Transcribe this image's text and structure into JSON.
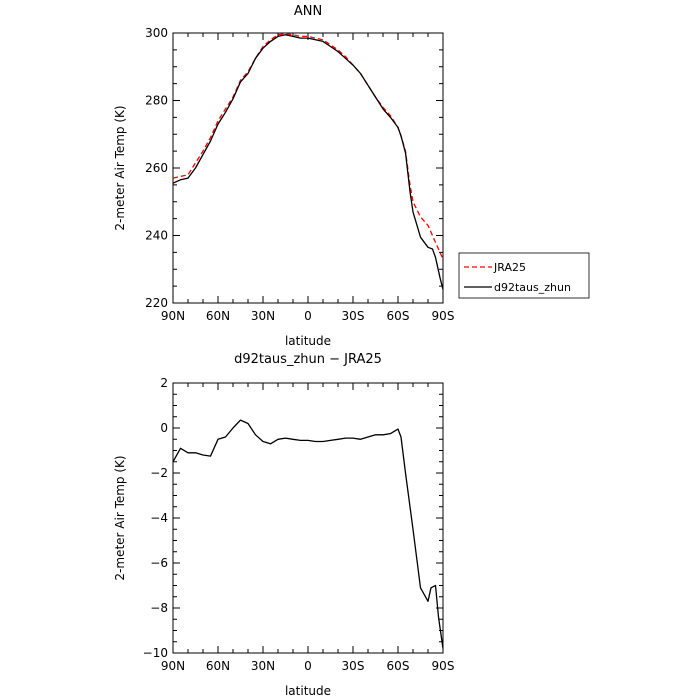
{
  "chart_data": [
    {
      "type": "line",
      "title": "ANN",
      "xlabel": "latitude",
      "ylabel": "2-meter Air Temp (K)",
      "xlim": [
        90,
        -90
      ],
      "ylim": [
        220,
        300
      ],
      "x_ticks": [
        90,
        60,
        30,
        0,
        -30,
        -60,
        -90
      ],
      "x_tick_labels": [
        "90N",
        "60N",
        "30N",
        "0",
        "30S",
        "60S",
        "90S"
      ],
      "y_ticks": [
        220,
        240,
        260,
        280,
        300
      ],
      "y_tick_labels": [
        "220",
        "240",
        "260",
        "280",
        "300"
      ],
      "legend": "right",
      "series": [
        {
          "name": "JRA25",
          "color": "#ff0000",
          "dash": "dashed",
          "x": [
            90,
            85,
            80,
            75,
            70,
            65,
            60,
            55,
            50,
            45,
            40,
            35,
            30,
            25,
            20,
            15,
            10,
            5,
            0,
            -5,
            -10,
            -15,
            -20,
            -25,
            -30,
            -35,
            -40,
            -45,
            -50,
            -55,
            -60,
            -62,
            -65,
            -68,
            -70,
            -75,
            -80,
            -85,
            -90
          ],
          "values": [
            257,
            257.5,
            258,
            261.5,
            265,
            269,
            274,
            277.5,
            281,
            286,
            288.5,
            292.5,
            296,
            298,
            299.5,
            299.8,
            299.5,
            299,
            299,
            298.5,
            298,
            296.5,
            295,
            293,
            290.5,
            288,
            284.5,
            281,
            278,
            275.5,
            272,
            269.5,
            265,
            255,
            250,
            245.5,
            243,
            238,
            233
          ]
        },
        {
          "name": "d92taus_zhun",
          "color": "#000000",
          "dash": "solid",
          "x": [
            90,
            85,
            80,
            75,
            70,
            65,
            60,
            55,
            50,
            45,
            40,
            35,
            30,
            25,
            20,
            15,
            10,
            5,
            0,
            -5,
            -10,
            -15,
            -20,
            -25,
            -30,
            -35,
            -40,
            -45,
            -50,
            -55,
            -60,
            -62,
            -65,
            -68,
            -70,
            -75,
            -80,
            -83,
            -85,
            -88,
            -90
          ],
          "values": [
            255.5,
            256.5,
            257,
            260,
            264,
            268,
            273,
            276.5,
            280.5,
            285.5,
            288,
            292.5,
            295.5,
            297.5,
            299,
            299.5,
            299,
            298.5,
            298.5,
            298,
            297.5,
            296,
            294.5,
            292.5,
            290.5,
            288,
            284.5,
            281,
            277.5,
            275,
            272,
            269.5,
            264.5,
            253,
            247,
            239.5,
            236.5,
            236,
            233.5,
            227.5,
            224
          ]
        }
      ]
    },
    {
      "type": "line",
      "title": "d92taus_zhun − JRA25",
      "xlabel": "latitude",
      "ylabel": "2-meter Air Temp (K)",
      "xlim": [
        90,
        -90
      ],
      "ylim": [
        -10,
        2
      ],
      "x_ticks": [
        90,
        60,
        30,
        0,
        -30,
        -60,
        -90
      ],
      "x_tick_labels": [
        "90N",
        "60N",
        "30N",
        "0",
        "30S",
        "60S",
        "90S"
      ],
      "y_ticks": [
        -10,
        -8,
        -6,
        -4,
        -2,
        0,
        2
      ],
      "y_tick_labels": [
        "−10",
        "−8",
        "−6",
        "−4",
        "−2",
        "0",
        "2"
      ],
      "series": [
        {
          "color": "#000000",
          "dash": "solid",
          "x": [
            90,
            85,
            80,
            75,
            70,
            65,
            60,
            55,
            50,
            45,
            40,
            35,
            30,
            25,
            20,
            15,
            10,
            5,
            0,
            -5,
            -10,
            -15,
            -20,
            -25,
            -30,
            -35,
            -40,
            -45,
            -50,
            -55,
            -60,
            -62,
            -65,
            -70,
            -75,
            -80,
            -82,
            -85,
            -87,
            -90
          ],
          "values": [
            -1.5,
            -0.9,
            -1.1,
            -1.1,
            -1.2,
            -1.25,
            -0.5,
            -0.4,
            0,
            0.35,
            0.2,
            -0.3,
            -0.6,
            -0.7,
            -0.5,
            -0.45,
            -0.5,
            -0.55,
            -0.55,
            -0.6,
            -0.6,
            -0.55,
            -0.5,
            -0.45,
            -0.45,
            -0.5,
            -0.4,
            -0.3,
            -0.3,
            -0.25,
            -0.05,
            -0.4,
            -2.0,
            -4.5,
            -7.1,
            -7.7,
            -7.1,
            -7.0,
            -8.4,
            -9.8
          ]
        }
      ]
    }
  ]
}
